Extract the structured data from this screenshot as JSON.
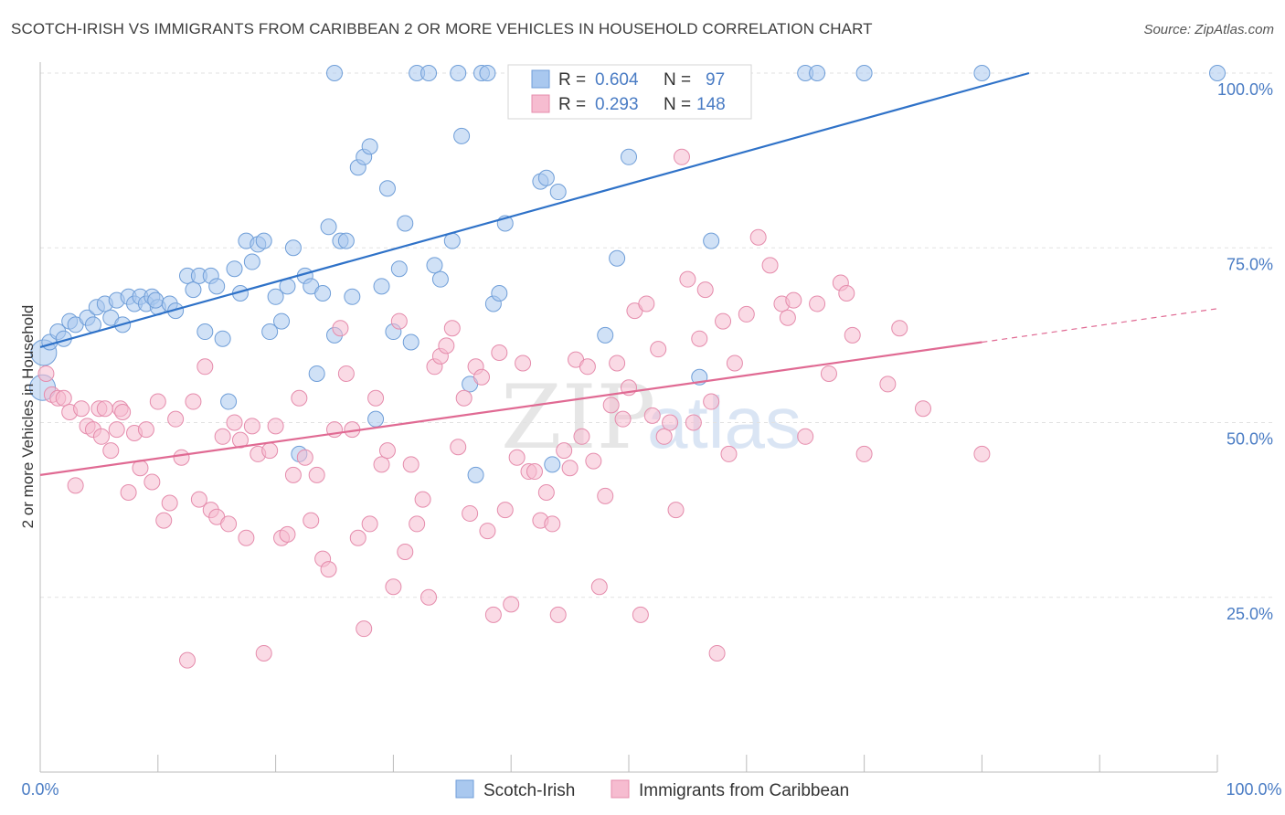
{
  "title": "SCOTCH-IRISH VS IMMIGRANTS FROM CARIBBEAN 2 OR MORE VEHICLES IN HOUSEHOLD CORRELATION CHART",
  "source": "Source: ZipAtlas.com",
  "watermark": {
    "zip": "ZIP",
    "atlas": "atlas"
  },
  "stats_legend": [
    {
      "r_label": "R =",
      "r_value": "0.604",
      "n_label": "N =",
      "n_value": "97",
      "color": "#4a7cc4"
    },
    {
      "r_label": "R =",
      "r_value": "0.293",
      "n_label": "N =",
      "n_value": "148",
      "color": "#e06a93"
    }
  ],
  "chart_data": {
    "type": "scatter",
    "title": "SCOTCH-IRISH VS IMMIGRANTS FROM CARIBBEAN 2 OR MORE VEHICLES IN HOUSEHOLD CORRELATION CHART",
    "xlabel": "",
    "ylabel": "2 or more Vehicles in Household",
    "xlim": [
      0,
      100
    ],
    "ylim": [
      0,
      102
    ],
    "x_tick_labels": [
      "0.0%",
      "100.0%"
    ],
    "y_ticks": [
      25,
      50,
      75,
      100
    ],
    "y_tick_labels": [
      "25.0%",
      "50.0%",
      "75.0%",
      "100.0%"
    ],
    "grid": true,
    "legend_position": "bottom",
    "series": [
      {
        "name": "Scotch-Irish",
        "color": "#a9c8ef",
        "edge_color": "#6f9ed8",
        "trend": {
          "x0": 0,
          "y0": 60.8,
          "x1": 84,
          "y1": 100,
          "color": "#2f72c8"
        },
        "points": [
          [
            0.2,
            55
          ],
          [
            0.3,
            60
          ],
          [
            0.8,
            61.5
          ],
          [
            1.5,
            63
          ],
          [
            2,
            62
          ],
          [
            2.5,
            64.5
          ],
          [
            3,
            64
          ],
          [
            4,
            65
          ],
          [
            4.5,
            64
          ],
          [
            4.8,
            66.5
          ],
          [
            5.5,
            67
          ],
          [
            6,
            65
          ],
          [
            6.5,
            67.5
          ],
          [
            7,
            64
          ],
          [
            7.5,
            68
          ],
          [
            8,
            67
          ],
          [
            8.5,
            68
          ],
          [
            9,
            67
          ],
          [
            9.5,
            68
          ],
          [
            10,
            66.5
          ],
          [
            9.8,
            67.5
          ],
          [
            11,
            67
          ],
          [
            11.5,
            66
          ],
          [
            12.5,
            71
          ],
          [
            13,
            69
          ],
          [
            13.5,
            71
          ],
          [
            14,
            63
          ],
          [
            14.5,
            71
          ],
          [
            15,
            69.5
          ],
          [
            15.5,
            62
          ],
          [
            16,
            53
          ],
          [
            16.5,
            72
          ],
          [
            17,
            68.5
          ],
          [
            17.5,
            76
          ],
          [
            18,
            73
          ],
          [
            18.5,
            75.5
          ],
          [
            19,
            76
          ],
          [
            19.5,
            63
          ],
          [
            20,
            68
          ],
          [
            20.5,
            64.5
          ],
          [
            21,
            69.5
          ],
          [
            21.5,
            75
          ],
          [
            22,
            45.5
          ],
          [
            22.5,
            71
          ],
          [
            23,
            69.5
          ],
          [
            23.5,
            57
          ],
          [
            24,
            68.5
          ],
          [
            25,
            100
          ],
          [
            24.5,
            78
          ],
          [
            25,
            62.5
          ],
          [
            25.5,
            76
          ],
          [
            26,
            76
          ],
          [
            26.5,
            68
          ],
          [
            27,
            86.5
          ],
          [
            27.5,
            88
          ],
          [
            28,
            89.5
          ],
          [
            28.5,
            50.5
          ],
          [
            29,
            69.5
          ],
          [
            29.5,
            83.5
          ],
          [
            30,
            63
          ],
          [
            30.5,
            72
          ],
          [
            31,
            78.5
          ],
          [
            31.5,
            61.5
          ],
          [
            32,
            100
          ],
          [
            33,
            100
          ],
          [
            33.5,
            72.5
          ],
          [
            34,
            70.5
          ],
          [
            35,
            76
          ],
          [
            35.5,
            100
          ],
          [
            35.8,
            91
          ],
          [
            36.5,
            55.5
          ],
          [
            37,
            42.5
          ],
          [
            37.5,
            100
          ],
          [
            38,
            100
          ],
          [
            38.5,
            67
          ],
          [
            39,
            68.5
          ],
          [
            39.5,
            78.5
          ],
          [
            41,
            100
          ],
          [
            42,
            100
          ],
          [
            42.5,
            84.5
          ],
          [
            43,
            85
          ],
          [
            43.5,
            44
          ],
          [
            44,
            83
          ],
          [
            47,
            100
          ],
          [
            48,
            62.5
          ],
          [
            49,
            73.5
          ],
          [
            50,
            88
          ],
          [
            52,
            100
          ],
          [
            53,
            100
          ],
          [
            56,
            56.5
          ],
          [
            57,
            76
          ],
          [
            58,
            100
          ],
          [
            65,
            100
          ],
          [
            66,
            100
          ],
          [
            70,
            100
          ],
          [
            80,
            100
          ],
          [
            100,
            100
          ]
        ]
      },
      {
        "name": "Immigrants from Caribbean",
        "color": "#f6bcd0",
        "edge_color": "#e58cac",
        "trend": {
          "x0": 0,
          "y0": 42.5,
          "x1": 80,
          "y1": 61.5,
          "color": "#e06a93"
        },
        "trend_dashed": {
          "x0": 80,
          "y0": 61.5,
          "x1": 100,
          "y1": 66.3
        },
        "points": [
          [
            0.5,
            57
          ],
          [
            1,
            54
          ],
          [
            1.5,
            53.5
          ],
          [
            2,
            53.5
          ],
          [
            2.5,
            51.5
          ],
          [
            3,
            41
          ],
          [
            3.5,
            52
          ],
          [
            4,
            49.5
          ],
          [
            4.5,
            49
          ],
          [
            5,
            52
          ],
          [
            5.2,
            48
          ],
          [
            5.5,
            52
          ],
          [
            6,
            46
          ],
          [
            6.5,
            49
          ],
          [
            6.8,
            52
          ],
          [
            7,
            51.5
          ],
          [
            7.5,
            40
          ],
          [
            8,
            48.5
          ],
          [
            8.5,
            43.5
          ],
          [
            9,
            49
          ],
          [
            9.5,
            41.5
          ],
          [
            10,
            53
          ],
          [
            10.5,
            36
          ],
          [
            11,
            38.5
          ],
          [
            11.5,
            50.5
          ],
          [
            12,
            45
          ],
          [
            12.5,
            16
          ],
          [
            13,
            53
          ],
          [
            13.5,
            39
          ],
          [
            14,
            58
          ],
          [
            14.5,
            37.5
          ],
          [
            15,
            36.5
          ],
          [
            15.5,
            48
          ],
          [
            16,
            35.5
          ],
          [
            16.5,
            50
          ],
          [
            17,
            47.5
          ],
          [
            17.5,
            33.5
          ],
          [
            18,
            49.5
          ],
          [
            18.5,
            45.5
          ],
          [
            19,
            17
          ],
          [
            19.5,
            46
          ],
          [
            20,
            49.5
          ],
          [
            20.5,
            33.5
          ],
          [
            21,
            34
          ],
          [
            21.5,
            42.5
          ],
          [
            22,
            53.5
          ],
          [
            22.5,
            45
          ],
          [
            23,
            36
          ],
          [
            23.5,
            42.5
          ],
          [
            24,
            30.5
          ],
          [
            24.5,
            29
          ],
          [
            25,
            49
          ],
          [
            25.5,
            63.5
          ],
          [
            26,
            57
          ],
          [
            26.5,
            49
          ],
          [
            27,
            33.5
          ],
          [
            27.5,
            20.5
          ],
          [
            28,
            35.5
          ],
          [
            28.5,
            53.5
          ],
          [
            29,
            44
          ],
          [
            29.5,
            46
          ],
          [
            30,
            26.5
          ],
          [
            30.5,
            64.5
          ],
          [
            31,
            31.5
          ],
          [
            31.5,
            44
          ],
          [
            32,
            35.5
          ],
          [
            32.5,
            39
          ],
          [
            33,
            25
          ],
          [
            33.5,
            58
          ],
          [
            34,
            59.5
          ],
          [
            34.5,
            61
          ],
          [
            35,
            63.5
          ],
          [
            35.5,
            46.5
          ],
          [
            36,
            53.5
          ],
          [
            36.5,
            37
          ],
          [
            37,
            58
          ],
          [
            37.5,
            56.5
          ],
          [
            38,
            34.5
          ],
          [
            38.5,
            22.5
          ],
          [
            39,
            60
          ],
          [
            39.5,
            37.5
          ],
          [
            40,
            24
          ],
          [
            40.5,
            45
          ],
          [
            41,
            58.5
          ],
          [
            41.5,
            43
          ],
          [
            42,
            43
          ],
          [
            42.5,
            36
          ],
          [
            43,
            40
          ],
          [
            43.5,
            35.5
          ],
          [
            44,
            22.5
          ],
          [
            44.5,
            46
          ],
          [
            45,
            43.5
          ],
          [
            45.5,
            59
          ],
          [
            46,
            48
          ],
          [
            46.5,
            58
          ],
          [
            47,
            44.5
          ],
          [
            47.5,
            26.5
          ],
          [
            48,
            39.5
          ],
          [
            48.5,
            52.5
          ],
          [
            49,
            58.5
          ],
          [
            49.5,
            50.5
          ],
          [
            50,
            55
          ],
          [
            50.5,
            66
          ],
          [
            51,
            22.5
          ],
          [
            51.5,
            67
          ],
          [
            52,
            51
          ],
          [
            52.5,
            60.5
          ],
          [
            53,
            48
          ],
          [
            53.5,
            50
          ],
          [
            54,
            37.5
          ],
          [
            54.5,
            88
          ],
          [
            55,
            70.5
          ],
          [
            55.5,
            50
          ],
          [
            56,
            62
          ],
          [
            56.5,
            69
          ],
          [
            57,
            53
          ],
          [
            57.5,
            17
          ],
          [
            58,
            64.5
          ],
          [
            58.5,
            45.5
          ],
          [
            59,
            58.5
          ],
          [
            60,
            65.5
          ],
          [
            61,
            76.5
          ],
          [
            62,
            72.5
          ],
          [
            63,
            67
          ],
          [
            63.5,
            65
          ],
          [
            64,
            67.5
          ],
          [
            65,
            48
          ],
          [
            66,
            67
          ],
          [
            67,
            57
          ],
          [
            68,
            70
          ],
          [
            68.5,
            68.5
          ],
          [
            69,
            62.5
          ],
          [
            70,
            45.5
          ],
          [
            72,
            55.5
          ],
          [
            73,
            63.5
          ],
          [
            75,
            52
          ],
          [
            80,
            45.5
          ]
        ]
      }
    ]
  },
  "bottom_legend": [
    {
      "label": "Scotch-Irish",
      "color": "#a9c8ef",
      "edge_color": "#6f9ed8"
    },
    {
      "label": "Immigrants from Caribbean",
      "color": "#f6bcd0",
      "edge_color": "#e58cac"
    }
  ]
}
